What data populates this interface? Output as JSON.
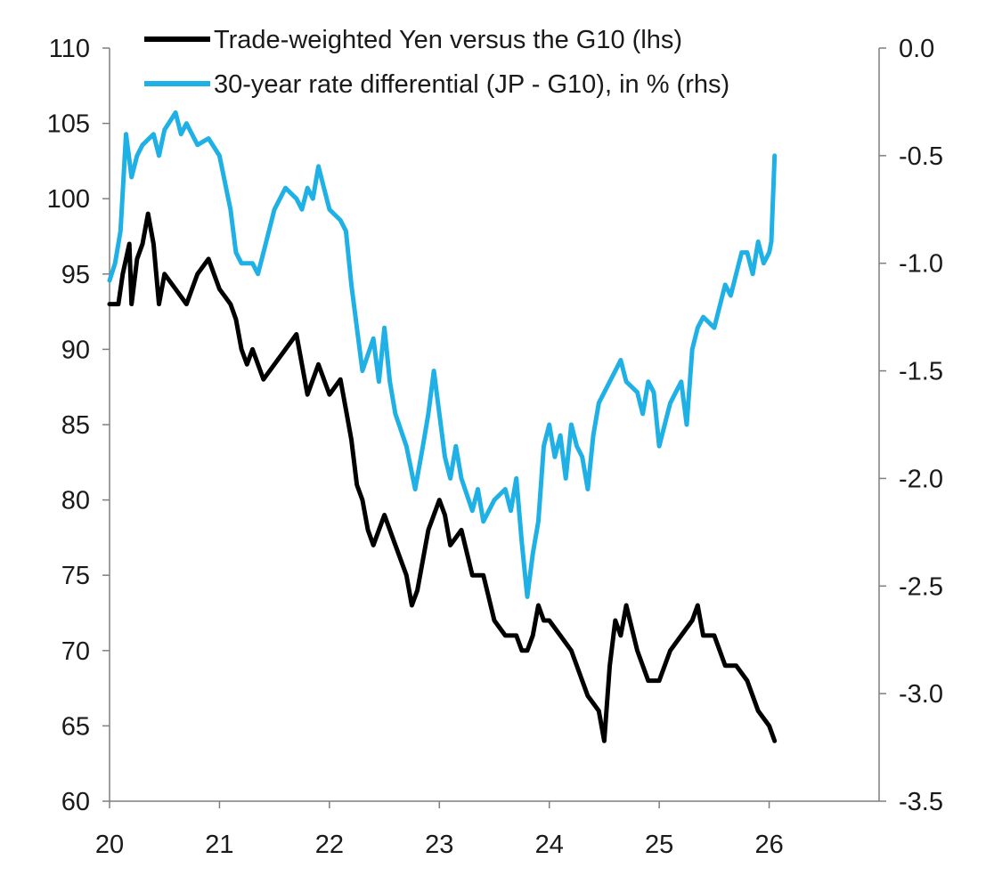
{
  "chart_data": {
    "type": "line",
    "title": "",
    "xlabel": "",
    "x_axis": {
      "range": [
        20,
        27
      ],
      "ticks": [
        20,
        21,
        22,
        23,
        24,
        25,
        26
      ],
      "tick_labels": [
        "20",
        "21",
        "22",
        "23",
        "24",
        "25",
        "26"
      ]
    },
    "y_left": {
      "range": [
        60,
        110
      ],
      "ticks": [
        60,
        65,
        70,
        75,
        80,
        85,
        90,
        95,
        100,
        105,
        110
      ],
      "tick_labels": [
        "60",
        "65",
        "70",
        "75",
        "80",
        "85",
        "90",
        "95",
        "100",
        "105",
        "110"
      ]
    },
    "y_right": {
      "range": [
        -3.5,
        0.0
      ],
      "ticks": [
        -3.5,
        -3.0,
        -2.5,
        -2.0,
        -1.5,
        -1.0,
        -0.5,
        0.0
      ],
      "tick_labels": [
        "-3.5",
        "-3.0",
        "-2.5",
        "-2.0",
        "-1.5",
        "-1.0",
        "-0.5",
        "0.0"
      ]
    },
    "legend_position": "top-right",
    "series": [
      {
        "name": "Trade-weighted Yen versus the G10 (lhs)",
        "axis": "left",
        "color": "#000000",
        "points": [
          [
            20.0,
            93
          ],
          [
            20.08,
            93
          ],
          [
            20.12,
            95
          ],
          [
            20.18,
            97
          ],
          [
            20.2,
            93
          ],
          [
            20.25,
            96
          ],
          [
            20.3,
            97
          ],
          [
            20.35,
            99
          ],
          [
            20.4,
            97
          ],
          [
            20.45,
            93
          ],
          [
            20.5,
            95
          ],
          [
            20.6,
            94
          ],
          [
            20.7,
            93
          ],
          [
            20.8,
            95
          ],
          [
            20.9,
            96
          ],
          [
            21.0,
            94
          ],
          [
            21.1,
            93
          ],
          [
            21.15,
            92
          ],
          [
            21.2,
            90
          ],
          [
            21.25,
            89
          ],
          [
            21.3,
            90
          ],
          [
            21.4,
            88
          ],
          [
            21.5,
            89
          ],
          [
            21.6,
            90
          ],
          [
            21.7,
            91
          ],
          [
            21.75,
            89
          ],
          [
            21.8,
            87
          ],
          [
            21.9,
            89
          ],
          [
            22.0,
            87
          ],
          [
            22.1,
            88
          ],
          [
            22.15,
            86
          ],
          [
            22.2,
            84
          ],
          [
            22.25,
            81
          ],
          [
            22.3,
            80
          ],
          [
            22.35,
            78
          ],
          [
            22.4,
            77
          ],
          [
            22.5,
            79
          ],
          [
            22.6,
            77
          ],
          [
            22.7,
            75
          ],
          [
            22.75,
            73
          ],
          [
            22.8,
            74
          ],
          [
            22.9,
            78
          ],
          [
            23.0,
            80
          ],
          [
            23.05,
            79
          ],
          [
            23.1,
            77
          ],
          [
            23.2,
            78
          ],
          [
            23.3,
            75
          ],
          [
            23.4,
            75
          ],
          [
            23.5,
            72
          ],
          [
            23.6,
            71
          ],
          [
            23.7,
            71
          ],
          [
            23.75,
            70
          ],
          [
            23.8,
            70
          ],
          [
            23.85,
            71
          ],
          [
            23.9,
            73
          ],
          [
            23.95,
            72
          ],
          [
            24.0,
            72
          ],
          [
            24.1,
            71
          ],
          [
            24.2,
            70
          ],
          [
            24.3,
            68
          ],
          [
            24.35,
            67
          ],
          [
            24.45,
            66
          ],
          [
            24.5,
            64
          ],
          [
            24.55,
            69
          ],
          [
            24.6,
            72
          ],
          [
            24.65,
            71
          ],
          [
            24.7,
            73
          ],
          [
            24.8,
            70
          ],
          [
            24.9,
            68
          ],
          [
            25.0,
            68
          ],
          [
            25.1,
            70
          ],
          [
            25.2,
            71
          ],
          [
            25.3,
            72
          ],
          [
            25.35,
            73
          ],
          [
            25.4,
            71
          ],
          [
            25.5,
            71
          ],
          [
            25.6,
            69
          ],
          [
            25.7,
            69
          ],
          [
            25.8,
            68
          ],
          [
            25.9,
            66
          ],
          [
            26.0,
            65
          ],
          [
            26.05,
            64
          ]
        ]
      },
      {
        "name": "30-year rate differential (JP - G10), in % (rhs)",
        "axis": "right",
        "color": "#1fb0e6",
        "points": [
          [
            20.0,
            -1.08
          ],
          [
            20.05,
            -1.0
          ],
          [
            20.1,
            -0.85
          ],
          [
            20.15,
            -0.4
          ],
          [
            20.2,
            -0.6
          ],
          [
            20.25,
            -0.5
          ],
          [
            20.3,
            -0.45
          ],
          [
            20.4,
            -0.4
          ],
          [
            20.45,
            -0.5
          ],
          [
            20.5,
            -0.38
          ],
          [
            20.6,
            -0.3
          ],
          [
            20.65,
            -0.4
          ],
          [
            20.7,
            -0.35
          ],
          [
            20.8,
            -0.45
          ],
          [
            20.9,
            -0.42
          ],
          [
            21.0,
            -0.5
          ],
          [
            21.1,
            -0.75
          ],
          [
            21.15,
            -0.95
          ],
          [
            21.2,
            -1.0
          ],
          [
            21.3,
            -1.0
          ],
          [
            21.35,
            -1.05
          ],
          [
            21.4,
            -0.95
          ],
          [
            21.5,
            -0.75
          ],
          [
            21.6,
            -0.65
          ],
          [
            21.7,
            -0.7
          ],
          [
            21.75,
            -0.75
          ],
          [
            21.8,
            -0.65
          ],
          [
            21.85,
            -0.7
          ],
          [
            21.9,
            -0.55
          ],
          [
            21.95,
            -0.65
          ],
          [
            22.0,
            -0.75
          ],
          [
            22.1,
            -0.8
          ],
          [
            22.15,
            -0.85
          ],
          [
            22.2,
            -1.1
          ],
          [
            22.25,
            -1.3
          ],
          [
            22.3,
            -1.5
          ],
          [
            22.4,
            -1.35
          ],
          [
            22.45,
            -1.55
          ],
          [
            22.5,
            -1.3
          ],
          [
            22.55,
            -1.55
          ],
          [
            22.6,
            -1.7
          ],
          [
            22.7,
            -1.85
          ],
          [
            22.78,
            -2.05
          ],
          [
            22.85,
            -1.85
          ],
          [
            22.9,
            -1.7
          ],
          [
            22.95,
            -1.5
          ],
          [
            23.0,
            -1.7
          ],
          [
            23.05,
            -1.9
          ],
          [
            23.1,
            -2.0
          ],
          [
            23.15,
            -1.85
          ],
          [
            23.2,
            -2.0
          ],
          [
            23.3,
            -2.15
          ],
          [
            23.35,
            -2.05
          ],
          [
            23.4,
            -2.2
          ],
          [
            23.5,
            -2.1
          ],
          [
            23.6,
            -2.05
          ],
          [
            23.65,
            -2.15
          ],
          [
            23.7,
            -2.0
          ],
          [
            23.75,
            -2.3
          ],
          [
            23.8,
            -2.55
          ],
          [
            23.85,
            -2.35
          ],
          [
            23.9,
            -2.2
          ],
          [
            23.95,
            -1.85
          ],
          [
            24.0,
            -1.75
          ],
          [
            24.05,
            -1.9
          ],
          [
            24.1,
            -1.8
          ],
          [
            24.15,
            -2.0
          ],
          [
            24.2,
            -1.75
          ],
          [
            24.25,
            -1.85
          ],
          [
            24.3,
            -1.9
          ],
          [
            24.35,
            -2.05
          ],
          [
            24.4,
            -1.8
          ],
          [
            24.45,
            -1.65
          ],
          [
            24.5,
            -1.6
          ],
          [
            24.6,
            -1.5
          ],
          [
            24.65,
            -1.45
          ],
          [
            24.7,
            -1.55
          ],
          [
            24.8,
            -1.6
          ],
          [
            24.85,
            -1.7
          ],
          [
            24.9,
            -1.55
          ],
          [
            24.95,
            -1.6
          ],
          [
            25.0,
            -1.85
          ],
          [
            25.05,
            -1.75
          ],
          [
            25.1,
            -1.65
          ],
          [
            25.15,
            -1.6
          ],
          [
            25.2,
            -1.55
          ],
          [
            25.25,
            -1.75
          ],
          [
            25.3,
            -1.4
          ],
          [
            25.35,
            -1.3
          ],
          [
            25.4,
            -1.25
          ],
          [
            25.5,
            -1.3
          ],
          [
            25.55,
            -1.2
          ],
          [
            25.6,
            -1.1
          ],
          [
            25.65,
            -1.15
          ],
          [
            25.7,
            -1.05
          ],
          [
            25.75,
            -0.95
          ],
          [
            25.8,
            -0.95
          ],
          [
            25.85,
            -1.05
          ],
          [
            25.9,
            -0.9
          ],
          [
            25.95,
            -1.0
          ],
          [
            26.0,
            -0.95
          ],
          [
            26.02,
            -0.9
          ],
          [
            26.05,
            -0.5
          ]
        ]
      }
    ]
  }
}
